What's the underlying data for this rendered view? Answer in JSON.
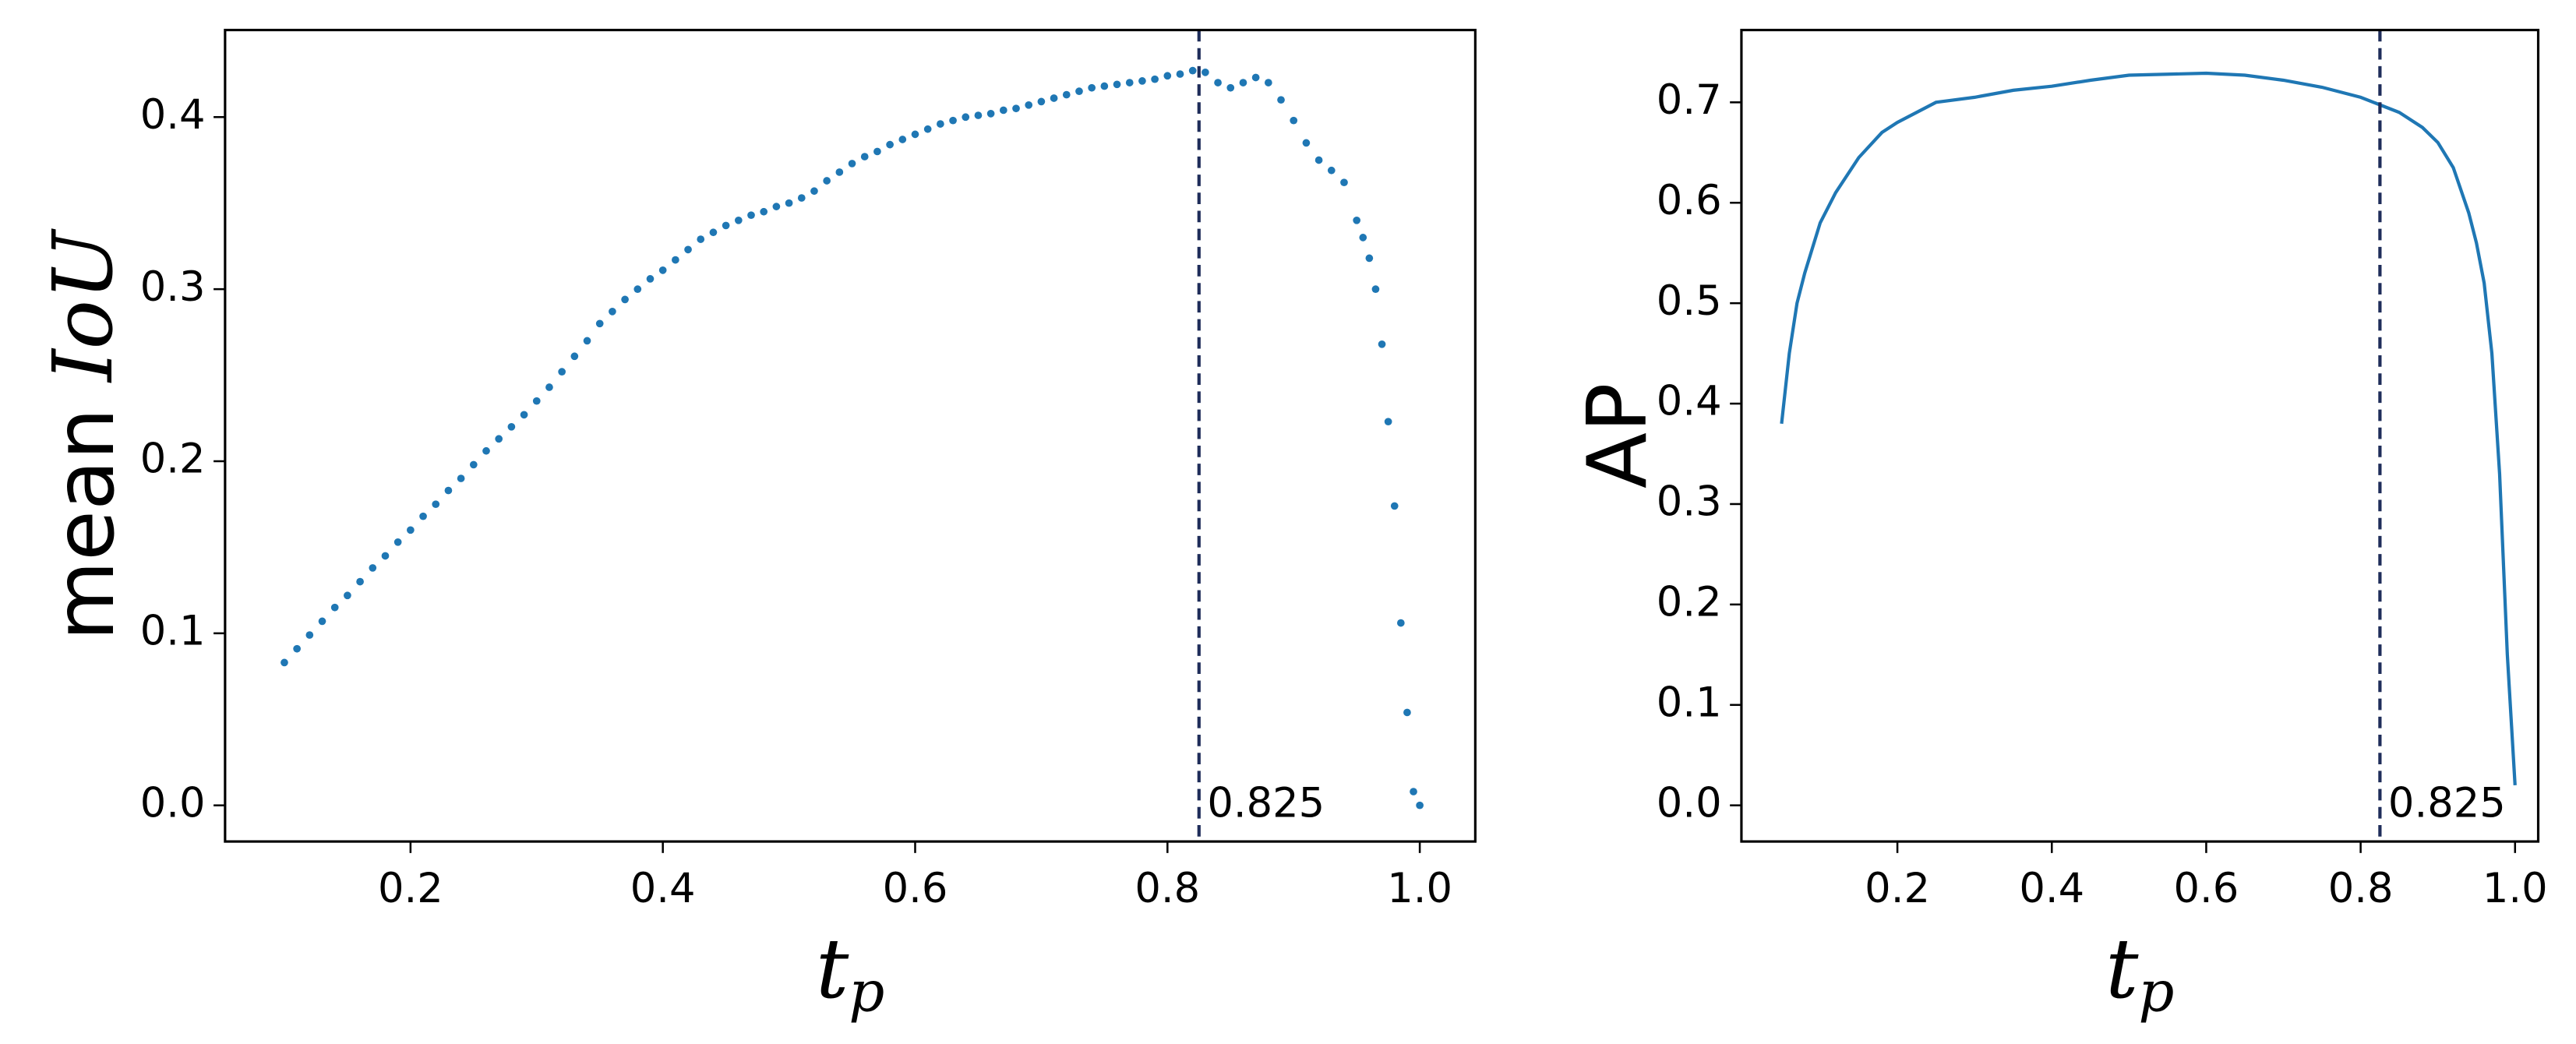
{
  "chart_data": [
    {
      "type": "scatter",
      "color": "#1f77b4",
      "xlabel": "t",
      "xlabel_sub": "p",
      "ylabel": "mean",
      "ylabel_math": "IoU",
      "xlim": [
        0.053,
        1.044
      ],
      "ylim": [
        -0.021,
        0.4506
      ],
      "xticks": [
        0.2,
        0.4,
        0.6,
        0.8,
        {
          "value": 1,
          "label": "1.0"
        }
      ],
      "yticks": [
        {
          "value": 0,
          "label": "0.0"
        },
        0.1,
        0.2,
        0.3,
        0.4
      ],
      "vline": 0.825,
      "vline_color": "#1f2d5a",
      "annotation": "0.825",
      "x": [
        0.1,
        0.11,
        0.12,
        0.13,
        0.14,
        0.15,
        0.16,
        0.17,
        0.18,
        0.19,
        0.2,
        0.21,
        0.22,
        0.23,
        0.24,
        0.25,
        0.26,
        0.27,
        0.28,
        0.29,
        0.3,
        0.31,
        0.32,
        0.33,
        0.34,
        0.35,
        0.36,
        0.37,
        0.38,
        0.39,
        0.4,
        0.41,
        0.42,
        0.43,
        0.44,
        0.45,
        0.46,
        0.47,
        0.48,
        0.49,
        0.5,
        0.51,
        0.52,
        0.53,
        0.54,
        0.55,
        0.56,
        0.57,
        0.58,
        0.59,
        0.6,
        0.61,
        0.62,
        0.63,
        0.64,
        0.65,
        0.66,
        0.67,
        0.68,
        0.69,
        0.7,
        0.71,
        0.72,
        0.73,
        0.74,
        0.75,
        0.76,
        0.77,
        0.78,
        0.79,
        0.8,
        0.81,
        0.82,
        0.83,
        0.84,
        0.85,
        0.86,
        0.87,
        0.88,
        0.89,
        0.9,
        0.91,
        0.92,
        0.93,
        0.94,
        0.95,
        0.955,
        0.96,
        0.965,
        0.97,
        0.975,
        0.98,
        0.985,
        0.99,
        0.995,
        1.0
      ],
      "values": [
        0.083,
        0.091,
        0.099,
        0.107,
        0.115,
        0.122,
        0.13,
        0.138,
        0.145,
        0.153,
        0.16,
        0.168,
        0.175,
        0.183,
        0.19,
        0.198,
        0.206,
        0.213,
        0.22,
        0.227,
        0.235,
        0.243,
        0.252,
        0.261,
        0.27,
        0.28,
        0.287,
        0.294,
        0.3,
        0.306,
        0.311,
        0.317,
        0.323,
        0.329,
        0.333,
        0.337,
        0.34,
        0.343,
        0.345,
        0.348,
        0.35,
        0.353,
        0.357,
        0.363,
        0.368,
        0.373,
        0.377,
        0.38,
        0.384,
        0.387,
        0.39,
        0.393,
        0.396,
        0.398,
        0.4,
        0.401,
        0.402,
        0.404,
        0.405,
        0.407,
        0.409,
        0.411,
        0.413,
        0.415,
        0.417,
        0.418,
        0.419,
        0.42,
        0.421,
        0.422,
        0.424,
        0.425,
        0.427,
        0.426,
        0.42,
        0.417,
        0.42,
        0.423,
        0.42,
        0.41,
        0.398,
        0.385,
        0.375,
        0.369,
        0.362,
        0.34,
        0.33,
        0.318,
        0.3,
        0.268,
        0.223,
        0.174,
        0.106,
        0.054,
        0.008,
        0.0
      ]
    },
    {
      "type": "line",
      "color": "#1f77b4",
      "xlabel": "t",
      "xlabel_sub": "p",
      "ylabel": "AP",
      "xlim": [
        -0.002,
        1.03
      ],
      "ylim": [
        -0.036,
        0.772
      ],
      "xticks": [
        0.2,
        0.4,
        0.6,
        0.8,
        {
          "value": 1,
          "label": "1.0"
        }
      ],
      "yticks": [
        {
          "value": 0,
          "label": "0.0"
        },
        0.1,
        0.2,
        0.3,
        0.4,
        0.5,
        0.6,
        0.7
      ],
      "vline": 0.825,
      "vline_color": "#1f2d5a",
      "annotation": "0.825",
      "x": [
        0.05,
        0.06,
        0.07,
        0.08,
        0.1,
        0.12,
        0.15,
        0.18,
        0.2,
        0.25,
        0.3,
        0.35,
        0.4,
        0.45,
        0.5,
        0.55,
        0.6,
        0.65,
        0.7,
        0.75,
        0.8,
        0.85,
        0.88,
        0.9,
        0.92,
        0.94,
        0.95,
        0.96,
        0.97,
        0.98,
        0.99,
        1.0
      ],
      "values": [
        0.38,
        0.45,
        0.5,
        0.53,
        0.58,
        0.61,
        0.645,
        0.67,
        0.68,
        0.7,
        0.705,
        0.712,
        0.716,
        0.722,
        0.727,
        0.728,
        0.729,
        0.727,
        0.722,
        0.715,
        0.705,
        0.69,
        0.675,
        0.66,
        0.635,
        0.59,
        0.56,
        0.52,
        0.45,
        0.33,
        0.15,
        0.02
      ]
    }
  ]
}
